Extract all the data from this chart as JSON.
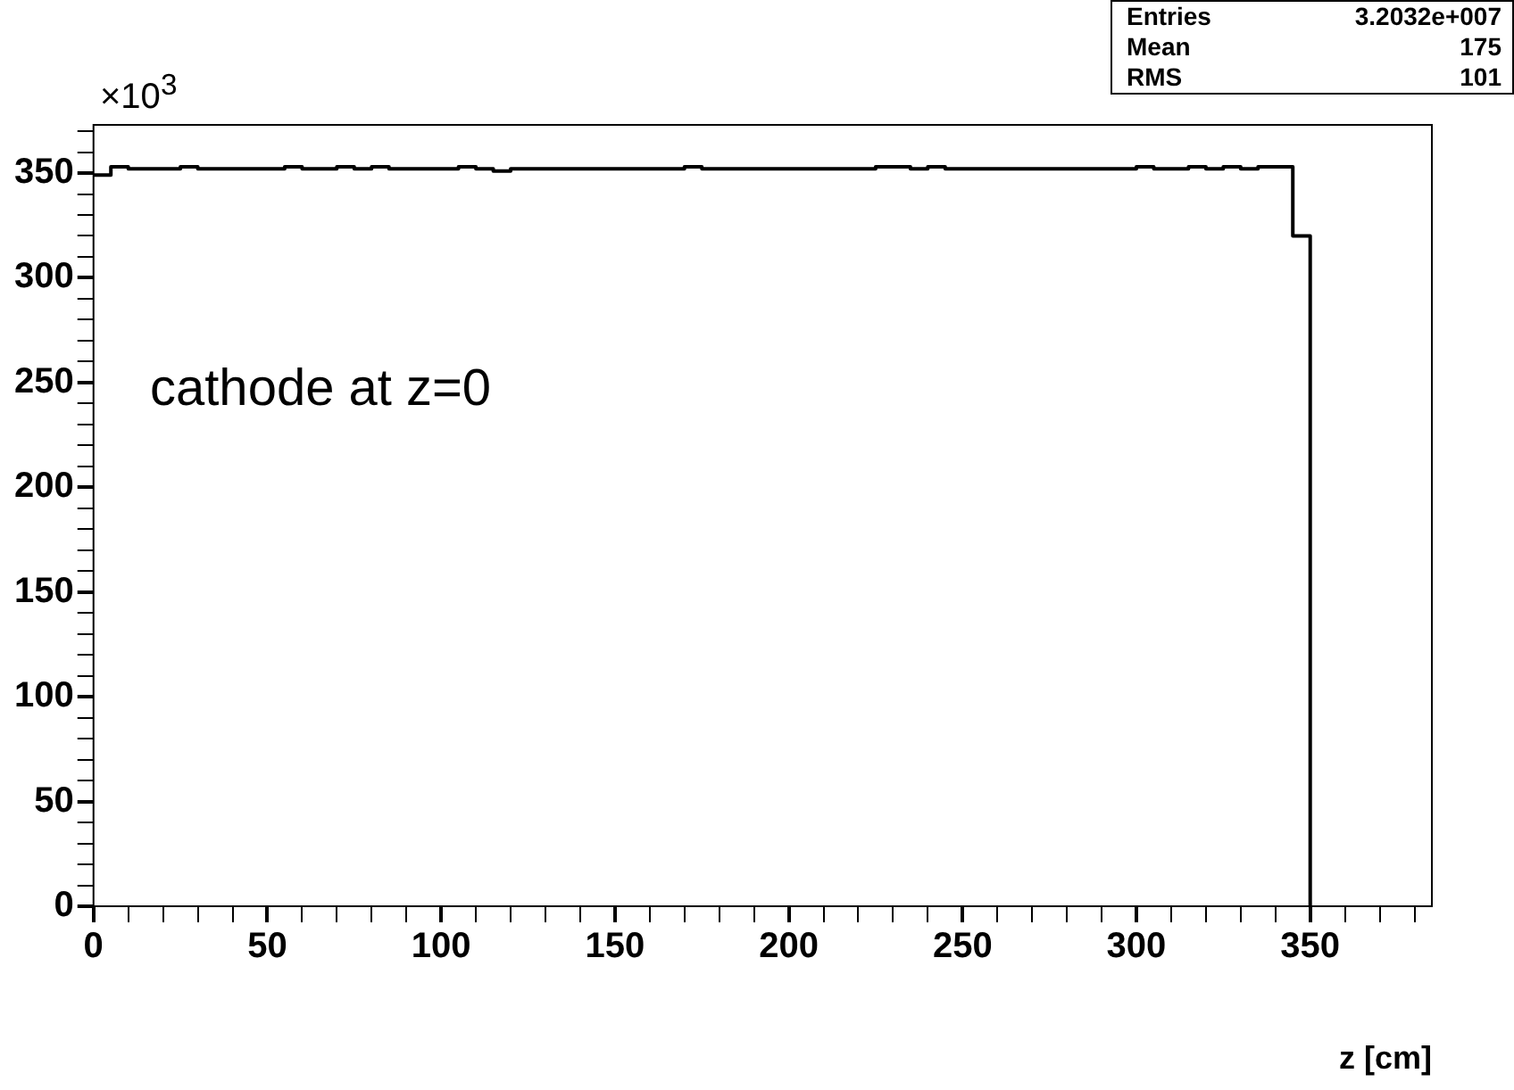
{
  "chart_data": {
    "type": "histogram",
    "xlabel": "z [cm]",
    "bins": [
      0,
      5,
      10,
      15,
      20,
      25,
      30,
      35,
      40,
      45,
      50,
      55,
      60,
      65,
      70,
      75,
      80,
      85,
      90,
      95,
      100,
      105,
      110,
      115,
      120,
      125,
      130,
      135,
      140,
      145,
      150,
      155,
      160,
      165,
      170,
      175,
      180,
      185,
      190,
      195,
      200,
      205,
      210,
      215,
      220,
      225,
      230,
      235,
      240,
      245,
      250,
      255,
      260,
      265,
      270,
      275,
      280,
      285,
      290,
      295,
      300,
      305,
      310,
      315,
      320,
      325,
      330,
      335,
      340,
      345,
      350
    ],
    "values": [
      349,
      353,
      352,
      352,
      352,
      353,
      352,
      352,
      352,
      352,
      352,
      353,
      352,
      352,
      353,
      352,
      353,
      352,
      352,
      352,
      352,
      353,
      352,
      351,
      352,
      352,
      352,
      352,
      352,
      352,
      352,
      352,
      352,
      352,
      353,
      352,
      352,
      352,
      352,
      352,
      352,
      352,
      352,
      352,
      352,
      353,
      353,
      352,
      353,
      352,
      352,
      352,
      352,
      352,
      352,
      352,
      352,
      352,
      352,
      352,
      353,
      352,
      352,
      353,
      352,
      353,
      352,
      353,
      353,
      320
    ],
    "color": "#000000",
    "xlim": [
      0,
      385
    ],
    "ylim": [
      0,
      373
    ],
    "xticks": [
      0,
      {
        "value": 10,
        "label": null
      },
      {
        "value": 20,
        "label": null
      },
      {
        "value": 30,
        "label": null
      },
      {
        "value": 40,
        "label": null
      },
      50,
      {
        "value": 60,
        "label": null
      },
      {
        "value": 70,
        "label": null
      },
      {
        "value": 80,
        "label": null
      },
      {
        "value": 90,
        "label": null
      },
      100,
      {
        "value": 110,
        "label": null
      },
      {
        "value": 120,
        "label": null
      },
      {
        "value": 130,
        "label": null
      },
      {
        "value": 140,
        "label": null
      },
      150,
      {
        "value": 160,
        "label": null
      },
      {
        "value": 170,
        "label": null
      },
      {
        "value": 180,
        "label": null
      },
      {
        "value": 190,
        "label": null
      },
      200,
      {
        "value": 210,
        "label": null
      },
      {
        "value": 220,
        "label": null
      },
      {
        "value": 230,
        "label": null
      },
      {
        "value": 240,
        "label": null
      },
      250,
      {
        "value": 260,
        "label": null
      },
      {
        "value": 270,
        "label": null
      },
      {
        "value": 280,
        "label": null
      },
      {
        "value": 290,
        "label": null
      },
      300,
      {
        "value": 310,
        "label": null
      },
      {
        "value": 320,
        "label": null
      },
      {
        "value": 330,
        "label": null
      },
      {
        "value": 340,
        "label": null
      },
      350,
      {
        "value": 360,
        "label": null
      },
      {
        "value": 370,
        "label": null
      },
      {
        "value": 380,
        "label": null
      }
    ],
    "yticks": [
      0,
      {
        "value": 10,
        "label": null
      },
      {
        "value": 20,
        "label": null
      },
      {
        "value": 30,
        "label": null
      },
      {
        "value": 40,
        "label": null
      },
      50,
      {
        "value": 60,
        "label": null
      },
      {
        "value": 70,
        "label": null
      },
      {
        "value": 80,
        "label": null
      },
      {
        "value": 90,
        "label": null
      },
      100,
      {
        "value": 110,
        "label": null
      },
      {
        "value": 120,
        "label": null
      },
      {
        "value": 130,
        "label": null
      },
      {
        "value": 140,
        "label": null
      },
      150,
      {
        "value": 160,
        "label": null
      },
      {
        "value": 170,
        "label": null
      },
      {
        "value": 180,
        "label": null
      },
      {
        "value": 190,
        "label": null
      },
      200,
      {
        "value": 210,
        "label": null
      },
      {
        "value": 220,
        "label": null
      },
      {
        "value": 230,
        "label": null
      },
      {
        "value": 240,
        "label": null
      },
      250,
      {
        "value": 260,
        "label": null
      },
      {
        "value": 270,
        "label": null
      },
      {
        "value": 280,
        "label": null
      },
      {
        "value": 290,
        "label": null
      },
      300,
      {
        "value": 310,
        "label": null
      },
      {
        "value": 320,
        "label": null
      },
      {
        "value": 330,
        "label": null
      },
      {
        "value": 340,
        "label": null
      },
      350,
      {
        "value": 360,
        "label": null
      },
      {
        "value": 370,
        "label": null
      }
    ],
    "grid": false,
    "annotations": [
      "×10$^{3}$",
      "cathode at z=0",
      "Entries",
      "3.2032e+007",
      "Mean",
      "175",
      "RMS",
      "101"
    ]
  }
}
